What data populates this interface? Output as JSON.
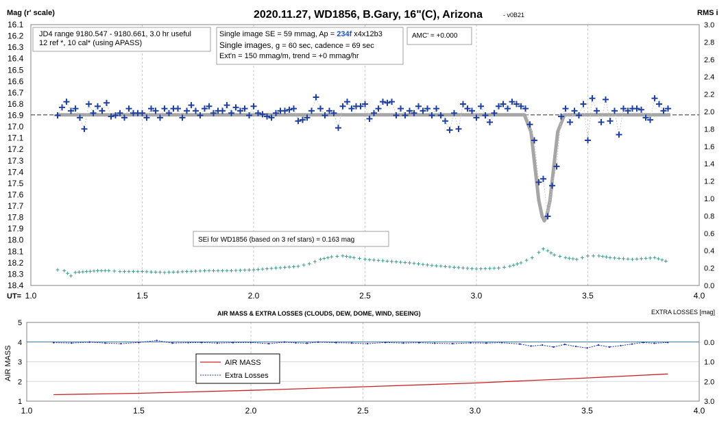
{
  "top": {
    "title": "2020.11.27, WD1856, B.Gary, 16\"(C), Arizona",
    "version": "- v0B21",
    "ylabel_left": "Mag (r' scale)",
    "ylabel_right": "RMS i",
    "xlabel": "UT=",
    "info_box_1": [
      "JD4 range 9180.547 - 9180.661, 3.0 hr useful",
      "12 ref *, 10 cal* (using APASS)"
    ],
    "info_box_2": {
      "line1_a": "Single image SE = 59 mmag, Ap = ",
      "line1_ap": "234f",
      "line1_b": " x4x12b3",
      "line2_a": "Single images, ",
      "line2_b": "g = 60 sec, cadence = 69 sec",
      "line3": "Ext'n = 150 mmag/m, trend = +0 mmag/hr"
    },
    "amc": "AMC' = +0.000",
    "sei": "SEi for WD1856 (based on 3 ref stars) = 0.163 mag"
  },
  "bottom": {
    "title": "AIR MASS & EXTRA LOSSES (CLOUDS, DEW, DOME, WIND, SEEING)",
    "right_label": "EXTRA LOSSES [mag]",
    "ylabel": "AIR MASS",
    "legend": [
      "AIR MASS",
      "Extra Losses"
    ]
  },
  "colors": {
    "data_marker": "#1f3f9f",
    "model": "#a6a6a6",
    "rms": "#3a9a90",
    "airmass": "#cc2020",
    "losses": "#2030b0",
    "zero_line": "#3b7fb5"
  },
  "chart_data": [
    {
      "type": "scatter",
      "title": "2020.11.27, WD1856, B.Gary, 16\"(C), Arizona",
      "xlabel": "UT=",
      "ylabel": "Mag (r' scale)",
      "y2label": "RMS i",
      "xlim": [
        1.0,
        4.0
      ],
      "ylim": [
        18.4,
        16.1
      ],
      "y2lim": [
        0.0,
        3.0
      ],
      "x_ticks": [
        "1.0",
        "1.5",
        "2.0",
        "2.5",
        "3.0",
        "3.5",
        "4.0"
      ],
      "y_ticks": [
        "16.1",
        "16.2",
        "16.3",
        "16.4",
        "16.5",
        "16.6",
        "16.7",
        "16.8",
        "16.9",
        "17.0",
        "17.1",
        "17.2",
        "17.3",
        "17.4",
        "17.5",
        "17.6",
        "17.7",
        "17.8",
        "17.9",
        "18.0",
        "18.1",
        "18.2",
        "18.3",
        "18.4"
      ],
      "y2_ticks": [
        "0.0",
        "0.2",
        "0.4",
        "0.6",
        "0.8",
        "1.0",
        "1.2",
        "1.4",
        "1.6",
        "1.8",
        "2.0",
        "2.2",
        "2.4",
        "2.6",
        "2.8",
        "3.0"
      ],
      "grid": true,
      "baseline_mag": 16.895,
      "series": [
        {
          "points": [
            [
              1.12,
              16.9
            ],
            [
              1.14,
              16.83
            ],
            [
              1.16,
              16.78
            ],
            [
              1.18,
              16.86
            ],
            [
              1.2,
              16.84
            ],
            [
              1.22,
              16.92
            ],
            [
              1.24,
              17.02
            ],
            [
              1.26,
              16.8
            ],
            [
              1.28,
              16.88
            ],
            [
              1.3,
              16.82
            ],
            [
              1.32,
              16.86
            ],
            [
              1.34,
              16.79
            ],
            [
              1.36,
              16.91
            ],
            [
              1.38,
              16.9
            ],
            [
              1.4,
              16.88
            ],
            [
              1.42,
              16.92
            ],
            [
              1.44,
              16.84
            ],
            [
              1.46,
              16.88
            ],
            [
              1.48,
              16.88
            ],
            [
              1.5,
              16.88
            ],
            [
              1.52,
              16.92
            ],
            [
              1.54,
              16.84
            ],
            [
              1.56,
              16.86
            ],
            [
              1.58,
              16.92
            ],
            [
              1.6,
              16.84
            ],
            [
              1.62,
              16.88
            ],
            [
              1.64,
              16.84
            ],
            [
              1.66,
              16.84
            ],
            [
              1.68,
              16.92
            ],
            [
              1.7,
              16.86
            ],
            [
              1.72,
              16.81
            ],
            [
              1.74,
              16.86
            ],
            [
              1.76,
              16.9
            ],
            [
              1.78,
              16.84
            ],
            [
              1.8,
              16.82
            ],
            [
              1.82,
              16.88
            ],
            [
              1.84,
              16.86
            ],
            [
              1.86,
              16.86
            ],
            [
              1.88,
              16.81
            ],
            [
              1.9,
              16.88
            ],
            [
              1.92,
              16.83
            ],
            [
              1.94,
              16.86
            ],
            [
              1.96,
              16.84
            ],
            [
              1.98,
              16.9
            ],
            [
              2.0,
              16.82
            ],
            [
              2.02,
              16.88
            ],
            [
              2.04,
              16.89
            ],
            [
              2.06,
              16.91
            ],
            [
              2.08,
              16.92
            ],
            [
              2.1,
              16.88
            ],
            [
              2.12,
              16.86
            ],
            [
              2.14,
              16.86
            ],
            [
              2.16,
              16.85
            ],
            [
              2.18,
              16.84
            ],
            [
              2.2,
              16.95
            ],
            [
              2.22,
              16.94
            ],
            [
              2.24,
              16.92
            ],
            [
              2.26,
              16.86
            ],
            [
              2.28,
              16.74
            ],
            [
              2.3,
              16.84
            ],
            [
              2.32,
              16.9
            ],
            [
              2.34,
              16.86
            ],
            [
              2.36,
              16.88
            ],
            [
              2.38,
              17.01
            ],
            [
              2.4,
              16.82
            ],
            [
              2.42,
              16.78
            ],
            [
              2.44,
              16.84
            ],
            [
              2.46,
              16.82
            ],
            [
              2.48,
              16.82
            ],
            [
              2.5,
              16.8
            ],
            [
              2.52,
              16.93
            ],
            [
              2.54,
              16.88
            ],
            [
              2.56,
              16.84
            ],
            [
              2.58,
              16.78
            ],
            [
              2.6,
              16.79
            ],
            [
              2.62,
              16.78
            ],
            [
              2.64,
              16.9
            ],
            [
              2.66,
              16.84
            ],
            [
              2.68,
              16.9
            ],
            [
              2.7,
              16.86
            ],
            [
              2.72,
              16.88
            ],
            [
              2.74,
              16.82
            ],
            [
              2.76,
              16.86
            ],
            [
              2.78,
              16.84
            ],
            [
              2.8,
              16.9
            ],
            [
              2.82,
              16.84
            ],
            [
              2.84,
              16.9
            ],
            [
              2.86,
              16.95
            ],
            [
              2.88,
              17.03
            ],
            [
              2.9,
              16.88
            ],
            [
              2.92,
              17.02
            ],
            [
              2.94,
              16.8
            ],
            [
              2.96,
              16.84
            ],
            [
              2.98,
              16.86
            ],
            [
              3.0,
              16.92
            ],
            [
              3.02,
              16.82
            ],
            [
              3.04,
              16.9
            ],
            [
              3.06,
              16.96
            ],
            [
              3.08,
              16.88
            ],
            [
              3.1,
              16.82
            ],
            [
              3.12,
              16.8
            ],
            [
              3.14,
              16.84
            ],
            [
              3.16,
              16.78
            ],
            [
              3.18,
              16.8
            ],
            [
              3.2,
              16.82
            ],
            [
              3.22,
              16.84
            ],
            [
              3.24,
              16.98
            ],
            [
              3.26,
              17.12
            ],
            [
              3.28,
              17.49
            ],
            [
              3.3,
              17.46
            ],
            [
              3.32,
              17.79
            ],
            [
              3.34,
              17.52
            ],
            [
              3.36,
              17.35
            ],
            [
              3.38,
              16.91
            ],
            [
              3.4,
              16.84
            ],
            [
              3.42,
              16.96
            ],
            [
              3.44,
              16.86
            ],
            [
              3.46,
              16.9
            ],
            [
              3.48,
              16.8
            ],
            [
              3.5,
              17.12
            ],
            [
              3.52,
              16.75
            ],
            [
              3.54,
              16.86
            ],
            [
              3.56,
              16.96
            ],
            [
              3.58,
              16.76
            ],
            [
              3.6,
              16.95
            ],
            [
              3.62,
              16.86
            ],
            [
              3.64,
              17.07
            ],
            [
              3.66,
              16.84
            ],
            [
              3.68,
              16.86
            ],
            [
              3.7,
              16.84
            ],
            [
              3.72,
              16.84
            ],
            [
              3.74,
              16.85
            ],
            [
              3.76,
              16.92
            ],
            [
              3.78,
              16.94
            ],
            [
              3.8,
              16.75
            ],
            [
              3.82,
              16.8
            ],
            [
              3.84,
              16.86
            ],
            [
              3.86,
              16.84
            ]
          ]
        },
        {
          "type": "line",
          "transit": {
            "ingress": 3.215,
            "bottom_start": 3.295,
            "bottom_end": 3.315,
            "egress": 3.395,
            "depth_mag": 17.83
          }
        },
        {
          "type": "scatter",
          "axis": "y2",
          "points": [
            [
              1.12,
              0.18
            ],
            [
              1.15,
              0.17
            ],
            [
              1.18,
              0.11
            ],
            [
              1.2,
              0.15
            ],
            [
              1.25,
              0.16
            ],
            [
              1.3,
              0.17
            ],
            [
              1.35,
              0.17
            ],
            [
              1.4,
              0.16
            ],
            [
              1.5,
              0.16
            ],
            [
              1.6,
              0.15
            ],
            [
              1.7,
              0.16
            ],
            [
              1.8,
              0.17
            ],
            [
              1.9,
              0.17
            ],
            [
              2.0,
              0.18
            ],
            [
              2.1,
              0.2
            ],
            [
              2.2,
              0.22
            ],
            [
              2.25,
              0.25
            ],
            [
              2.3,
              0.3
            ],
            [
              2.35,
              0.33
            ],
            [
              2.4,
              0.34
            ],
            [
              2.45,
              0.32
            ],
            [
              2.5,
              0.3
            ],
            [
              2.6,
              0.28
            ],
            [
              2.7,
              0.26
            ],
            [
              2.8,
              0.23
            ],
            [
              2.9,
              0.21
            ],
            [
              3.0,
              0.19
            ],
            [
              3.1,
              0.2
            ],
            [
              3.15,
              0.22
            ],
            [
              3.2,
              0.26
            ],
            [
              3.25,
              0.32
            ],
            [
              3.28,
              0.38
            ],
            [
              3.3,
              0.42
            ],
            [
              3.32,
              0.4
            ],
            [
              3.35,
              0.35
            ],
            [
              3.4,
              0.32
            ],
            [
              3.45,
              0.3
            ],
            [
              3.5,
              0.34
            ],
            [
              3.55,
              0.34
            ],
            [
              3.6,
              0.32
            ],
            [
              3.7,
              0.3
            ],
            [
              3.8,
              0.32
            ],
            [
              3.85,
              0.28
            ],
            [
              3.87,
              0.23
            ]
          ]
        }
      ]
    },
    {
      "type": "line",
      "title": "AIR MASS & EXTRA LOSSES (CLOUDS, DEW, DOME, WIND, SEEING)",
      "ylabel": "AIR MASS",
      "y2label": "EXTRA LOSSES [mag]",
      "xlim": [
        1.0,
        4.0
      ],
      "ylim": [
        1,
        5
      ],
      "y2lim": [
        3.0,
        -1.0
      ],
      "x_ticks": [
        "1.0",
        "1.5",
        "2.0",
        "2.5",
        "3.0",
        "3.5",
        "4.0"
      ],
      "y_ticks": [
        "1",
        "2",
        "3",
        "4",
        "5"
      ],
      "y2_ticks": [
        "3.0",
        "2.0",
        "1.0",
        "0.0"
      ],
      "legend": "left-center",
      "series": [
        {
          "name": "AIR MASS",
          "x": [
            1.12,
            1.5,
            2.0,
            2.5,
            3.0,
            3.5,
            3.86
          ],
          "values": [
            1.33,
            1.4,
            1.55,
            1.73,
            1.92,
            2.18,
            2.38
          ]
        },
        {
          "name": "Extra Losses",
          "x": [
            1.12,
            1.2,
            1.28,
            1.35,
            1.42,
            1.5,
            1.58,
            1.65,
            1.72,
            1.78,
            1.85,
            1.92,
            2.0,
            2.08,
            2.15,
            2.2,
            2.25,
            2.3,
            2.38,
            2.45,
            2.52,
            2.6,
            2.68,
            2.75,
            2.82,
            2.9,
            2.98,
            3.05,
            3.12,
            3.2,
            3.25,
            3.3,
            3.35,
            3.4,
            3.45,
            3.5,
            3.55,
            3.6,
            3.65,
            3.7,
            3.75,
            3.8,
            3.86
          ],
          "values": [
            0.03,
            0.05,
            0.0,
            0.05,
            0.08,
            0.02,
            -0.08,
            0.05,
            0.03,
            0.02,
            0.05,
            0.03,
            0.02,
            0.08,
            0.0,
            0.04,
            0.06,
            0.0,
            0.03,
            0.05,
            0.08,
            0.02,
            0.05,
            0.03,
            0.06,
            0.08,
            0.04,
            0.05,
            0.03,
            0.1,
            0.2,
            0.15,
            0.25,
            0.12,
            0.22,
            0.3,
            0.15,
            0.25,
            0.18,
            0.1,
            0.02,
            0.06,
            0.02
          ]
        }
      ]
    }
  ]
}
